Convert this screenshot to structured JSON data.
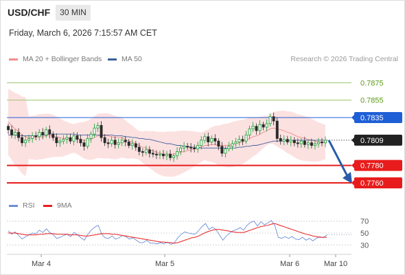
{
  "header": {
    "symbol": "USD/CHF",
    "timeframe": "30 MIN",
    "datetime": "Friday, March 6, 2026 7:15:57 AM CET",
    "credit": "Research © 2026 Trading Central"
  },
  "chart_data": [
    {
      "type": "candlestick",
      "title": "USD/CHF",
      "legend": [
        {
          "name": "MA 20 + Bollinger Bands",
          "color": "#f08c8c"
        },
        {
          "name": "MA 50",
          "color": "#3a5f9c"
        }
      ],
      "ylim": [
        0.7745,
        0.7895
      ],
      "current_price": "0.7809",
      "levels": [
        {
          "label": "0.7875",
          "value": 0.7875,
          "kind": "target",
          "color": "#9cc36b"
        },
        {
          "label": "0.7855",
          "value": 0.7855,
          "kind": "target",
          "color": "#9cc36b"
        },
        {
          "label": "0.7835",
          "value": 0.7835,
          "kind": "pivot",
          "color": "#1f5fd6"
        },
        {
          "label": "0.7780",
          "value": 0.778,
          "kind": "support",
          "color": "#e81c1c"
        },
        {
          "label": "0.7760",
          "value": 0.776,
          "kind": "support",
          "color": "#e81c1c"
        }
      ],
      "arrow": {
        "from": 0.7809,
        "to": 0.776,
        "direction": "down"
      },
      "x_ticks": [
        "Mar 4",
        "Mar 5",
        "Mar 6",
        "Mar 10"
      ],
      "close_series": [
        0.7821,
        0.7815,
        0.7818,
        0.7812,
        0.7806,
        0.7809,
        0.7811,
        0.7814,
        0.7813,
        0.7818,
        0.7815,
        0.7821,
        0.7816,
        0.7812,
        0.7806,
        0.7808,
        0.781,
        0.7812,
        0.7808,
        0.7814,
        0.781,
        0.7806,
        0.7802,
        0.7811,
        0.7816,
        0.7823,
        0.7826,
        0.7812,
        0.7806,
        0.7805,
        0.7809,
        0.7804,
        0.7806,
        0.7809,
        0.7807,
        0.7803,
        0.7805,
        0.7801,
        0.7796,
        0.7795,
        0.7798,
        0.7794,
        0.7793,
        0.7792,
        0.7793,
        0.7791,
        0.7793,
        0.7789,
        0.7791,
        0.7796,
        0.78,
        0.7802,
        0.7801,
        0.78,
        0.7799,
        0.7803,
        0.7809,
        0.7813,
        0.7807,
        0.7811,
        0.7808,
        0.7802,
        0.7794,
        0.7799,
        0.7802,
        0.7805,
        0.7807,
        0.781,
        0.7808,
        0.7815,
        0.7822,
        0.7825,
        0.782,
        0.7827,
        0.7824,
        0.7828,
        0.7836,
        0.7831,
        0.7811,
        0.7808,
        0.781,
        0.7807,
        0.7809,
        0.7806,
        0.7805,
        0.7808,
        0.7804,
        0.7806,
        0.7803,
        0.7805,
        0.7807,
        0.7806,
        0.7809
      ],
      "ma20_series": [
        0.783,
        0.7826,
        0.7822,
        0.7819,
        0.7815,
        0.7813,
        0.7812,
        0.7812,
        0.7812,
        0.7813,
        0.7813,
        0.7814,
        0.7814,
        0.7814,
        0.7813,
        0.7812,
        0.7811,
        0.7811,
        0.7811,
        0.7811,
        0.7811,
        0.781,
        0.7809,
        0.7809,
        0.781,
        0.7812,
        0.7814,
        0.7814,
        0.7814,
        0.7814,
        0.7813,
        0.7812,
        0.7812,
        0.7812,
        0.781,
        0.7808,
        0.7807,
        0.7805,
        0.7803,
        0.7801,
        0.78,
        0.7798,
        0.7797,
        0.7795,
        0.7794,
        0.7793,
        0.7793,
        0.7793,
        0.7793,
        0.7794,
        0.7795,
        0.7796,
        0.7797,
        0.7798,
        0.7799,
        0.78,
        0.7801,
        0.7803,
        0.7803,
        0.7804,
        0.7804,
        0.7803,
        0.7803,
        0.7803,
        0.7803,
        0.7804,
        0.7805,
        0.7806,
        0.7807,
        0.7809,
        0.7811,
        0.7813,
        0.7814,
        0.7816,
        0.7818,
        0.782,
        0.7822,
        0.7823,
        0.7822,
        0.7821,
        0.782,
        0.7818,
        0.7817,
        0.7815,
        0.7813,
        0.7812,
        0.7811,
        0.781,
        0.7809,
        0.7808,
        0.7807,
        0.7807,
        0.7807
      ],
      "ma50_series": [
        0.7815,
        0.7815,
        0.7815,
        0.7814,
        0.7814,
        0.7814,
        0.7814,
        0.7814,
        0.7814,
        0.7815,
        0.7815,
        0.7815,
        0.7816,
        0.7816,
        0.7816,
        0.7816,
        0.7816,
        0.7816,
        0.7816,
        0.7816,
        0.7815,
        0.7815,
        0.7815,
        0.7815,
        0.7815,
        0.7815,
        0.7815,
        0.7815,
        0.7815,
        0.7815,
        0.7815,
        0.7814,
        0.7814,
        0.7814,
        0.7813,
        0.7813,
        0.7812,
        0.7812,
        0.7811,
        0.7811,
        0.781,
        0.781,
        0.7809,
        0.7808,
        0.7807,
        0.7806,
        0.7805,
        0.7805,
        0.7804,
        0.7803,
        0.7803,
        0.7802,
        0.7802,
        0.7801,
        0.7801,
        0.7801,
        0.78,
        0.78,
        0.78,
        0.78,
        0.78,
        0.78,
        0.78,
        0.78,
        0.78,
        0.78,
        0.78,
        0.7801,
        0.7801,
        0.7802,
        0.7802,
        0.7803,
        0.7803,
        0.7804,
        0.7805,
        0.7806,
        0.7807,
        0.7808,
        0.7808,
        0.7808,
        0.7808,
        0.7809,
        0.7809,
        0.7809,
        0.7809,
        0.7809,
        0.7809,
        0.7809,
        0.7809,
        0.7809,
        0.7809,
        0.7809,
        0.7809
      ]
    },
    {
      "type": "line",
      "title": "RSI",
      "legend": [
        {
          "name": "RSI",
          "color": "#6b8fd6"
        },
        {
          "name": "9MA",
          "color": "#e81c1c"
        }
      ],
      "ylim": [
        20,
        80
      ],
      "y_ticks": [
        "70",
        "50",
        "30"
      ],
      "rsi_series": [
        54,
        48,
        52,
        46,
        40,
        44,
        47,
        50,
        49,
        55,
        51,
        57,
        51,
        47,
        41,
        43,
        46,
        48,
        44,
        51,
        47,
        42,
        38,
        48,
        55,
        60,
        63,
        48,
        42,
        41,
        45,
        40,
        42,
        46,
        44,
        40,
        42,
        38,
        34,
        34,
        38,
        33,
        33,
        32,
        34,
        32,
        35,
        31,
        34,
        42,
        48,
        52,
        50,
        49,
        48,
        54,
        61,
        66,
        56,
        60,
        56,
        47,
        38,
        45,
        50,
        54,
        56,
        59,
        55,
        63,
        68,
        70,
        62,
        69,
        64,
        67,
        71,
        63,
        43,
        41,
        44,
        41,
        44,
        40,
        39,
        43,
        38,
        41,
        37,
        41,
        44,
        42,
        47
      ],
      "ma9_series": [
        50,
        50,
        50,
        49,
        48,
        47,
        47,
        47,
        47,
        48,
        48,
        49,
        49,
        49,
        48,
        48,
        48,
        48,
        47,
        47,
        47,
        46,
        45,
        45,
        46,
        47,
        48,
        49,
        49,
        49,
        48,
        48,
        47,
        46,
        45,
        44,
        43,
        42,
        41,
        40,
        39,
        38,
        37,
        36,
        35,
        35,
        34,
        34,
        33,
        34,
        36,
        38,
        40,
        42,
        43,
        45,
        48,
        51,
        53,
        55,
        56,
        56,
        55,
        54,
        53,
        52,
        51,
        51,
        51,
        53,
        55,
        57,
        59,
        61,
        62,
        63,
        65,
        66,
        64,
        62,
        60,
        58,
        56,
        54,
        52,
        50,
        48,
        47,
        45,
        44,
        43,
        43,
        43
      ]
    }
  ]
}
